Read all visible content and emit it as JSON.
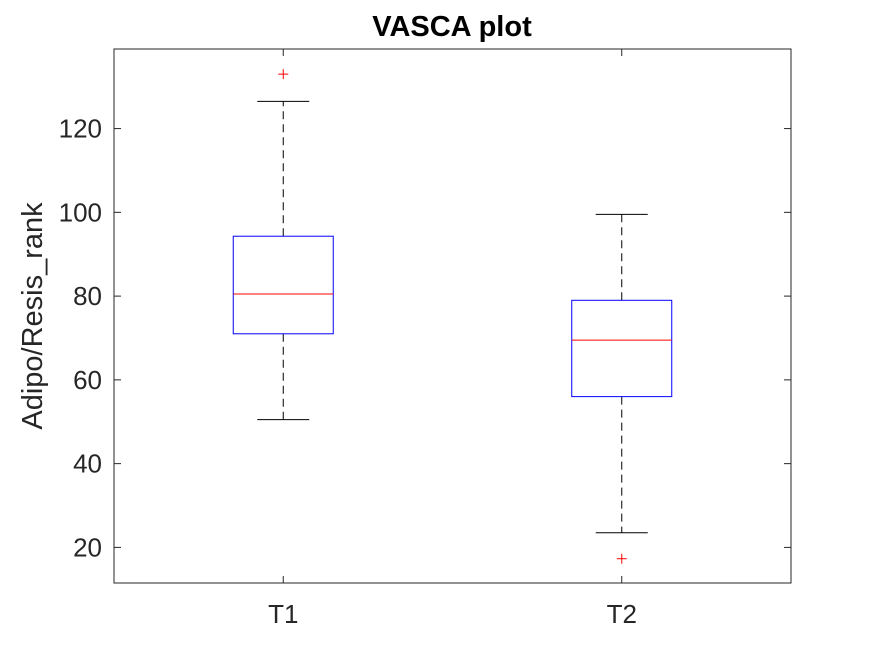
{
  "chart_data": {
    "type": "box",
    "title": "VASCA plot",
    "xlabel": "",
    "ylabel": "Adipo/Resis_rank",
    "categories": [
      "T1",
      "T2"
    ],
    "ylim": [
      11.5,
      139
    ],
    "yticks": [
      20,
      40,
      60,
      80,
      100,
      120
    ],
    "grid": false,
    "boxes": [
      {
        "category": "T1",
        "whisker_low": 50.5,
        "q1": 71,
        "median": 80.5,
        "q3": 94.3,
        "whisker_high": 126.5,
        "outliers": [
          133
        ]
      },
      {
        "category": "T2",
        "whisker_low": 23.5,
        "q1": 56,
        "median": 69.5,
        "q3": 79,
        "whisker_high": 99.5,
        "outliers": [
          17.3
        ]
      }
    ]
  },
  "colors": {
    "box": "#0000ff",
    "median": "#ff0000",
    "outlier": "#ff0000",
    "whisker": "#000000",
    "axis": "#262626"
  }
}
